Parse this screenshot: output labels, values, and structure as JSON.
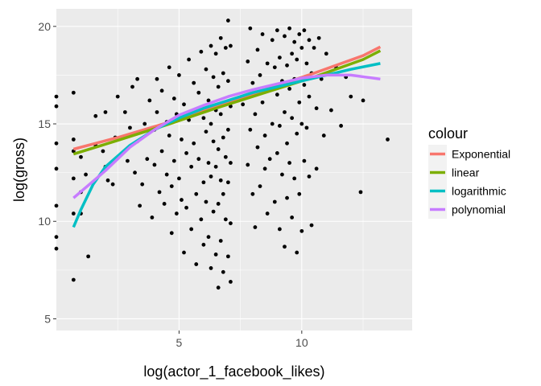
{
  "chart_data": {
    "type": "scatter",
    "xlabel": "log(actor_1_facebook_likes)",
    "ylabel": "log(gross)",
    "xlim": [
      0,
      14.5
    ],
    "ylim": [
      4.4,
      20.9
    ],
    "x_ticks": [
      5,
      10
    ],
    "x_tick_labels": [
      "5",
      "10"
    ],
    "y_ticks": [
      5,
      10,
      15,
      20
    ],
    "y_tick_labels": [
      "5",
      "10",
      "15",
      "20"
    ],
    "grid": true,
    "legend": {
      "title": "colour",
      "position": "right",
      "entries": [
        "Exponential",
        "linear",
        "logarithmic",
        "polynomial"
      ]
    },
    "colors": {
      "Exponential": "#F8766D",
      "linear": "#7CAE00",
      "logarithmic": "#00BFC4",
      "polynomial": "#C77CFF",
      "points": "#000000",
      "panel": "#EBEBEB"
    },
    "series": [
      {
        "name": "Exponential",
        "x": [
          0.7,
          2.5,
          4.5,
          6.5,
          8.5,
          10.5,
          12.5,
          13.2
        ],
        "y": [
          13.7,
          14.3,
          15.05,
          15.9,
          16.75,
          17.6,
          18.5,
          18.95
        ]
      },
      {
        "name": "linear",
        "x": [
          0.7,
          2.5,
          4.5,
          6.5,
          8.5,
          10.5,
          12.5,
          13.2
        ],
        "y": [
          13.45,
          14.15,
          14.95,
          15.8,
          16.6,
          17.4,
          18.3,
          18.75
        ]
      },
      {
        "name": "logarithmic",
        "x": [
          0.7,
          1.0,
          1.5,
          2.0,
          3.0,
          4.0,
          5.0,
          6.0,
          7.0,
          8.0,
          9.0,
          10.0,
          11.0,
          12.0,
          13.2
        ],
        "y": [
          9.7,
          10.6,
          11.9,
          12.8,
          13.9,
          14.7,
          15.3,
          15.8,
          16.2,
          16.6,
          16.9,
          17.2,
          17.5,
          17.8,
          18.1
        ]
      },
      {
        "name": "polynomial",
        "x": [
          0.7,
          2.0,
          3.0,
          4.0,
          5.0,
          6.0,
          7.0,
          8.0,
          9.0,
          10.0,
          11.0,
          12.0,
          13.2
        ],
        "y": [
          11.2,
          12.6,
          13.8,
          14.7,
          15.45,
          15.95,
          16.4,
          16.75,
          17.05,
          17.35,
          17.5,
          17.5,
          17.3
        ]
      }
    ],
    "points": [
      [
        0.0,
        16.4
      ],
      [
        0.0,
        15.9
      ],
      [
        0.0,
        14.0
      ],
      [
        0.0,
        12.7
      ],
      [
        0.0,
        10.8
      ],
      [
        0.0,
        9.2
      ],
      [
        0.0,
        8.6
      ],
      [
        0.7,
        16.6
      ],
      [
        0.7,
        14.2
      ],
      [
        0.7,
        13.6
      ],
      [
        0.7,
        12.2
      ],
      [
        0.7,
        10.4
      ],
      [
        0.7,
        7.0
      ],
      [
        1.0,
        13.3
      ],
      [
        1.0,
        11.5
      ],
      [
        1.0,
        10.4
      ],
      [
        1.2,
        12.4
      ],
      [
        1.3,
        8.2
      ],
      [
        1.6,
        15.4
      ],
      [
        1.6,
        13.9
      ],
      [
        1.9,
        13.6
      ],
      [
        2.0,
        15.6
      ],
      [
        2.0,
        12.8
      ],
      [
        2.1,
        12.1
      ],
      [
        2.3,
        11.9
      ],
      [
        2.4,
        14.3
      ],
      [
        2.5,
        16.4
      ],
      [
        2.8,
        15.6
      ],
      [
        2.9,
        13.1
      ],
      [
        3.0,
        14.8
      ],
      [
        3.1,
        16.9
      ],
      [
        3.2,
        12.5
      ],
      [
        3.3,
        17.3
      ],
      [
        3.3,
        14.1
      ],
      [
        3.4,
        10.8
      ],
      [
        3.5,
        11.9
      ],
      [
        3.6,
        15.0
      ],
      [
        3.7,
        13.2
      ],
      [
        3.8,
        16.2
      ],
      [
        3.9,
        10.2
      ],
      [
        4.0,
        14.7
      ],
      [
        4.0,
        12.9
      ],
      [
        4.1,
        17.3
      ],
      [
        4.1,
        15.6
      ],
      [
        4.2,
        11.5
      ],
      [
        4.3,
        16.7
      ],
      [
        4.3,
        13.6
      ],
      [
        4.4,
        10.9
      ],
      [
        4.5,
        15.1
      ],
      [
        4.5,
        12.4
      ],
      [
        4.6,
        17.9
      ],
      [
        4.6,
        14.4
      ],
      [
        4.7,
        11.8
      ],
      [
        4.7,
        9.4
      ],
      [
        4.8,
        16.3
      ],
      [
        4.8,
        13.1
      ],
      [
        4.9,
        15.5
      ],
      [
        4.9,
        10.4
      ],
      [
        5.0,
        12.2
      ],
      [
        5.0,
        17.5
      ],
      [
        5.1,
        14.2
      ],
      [
        5.1,
        11.1
      ],
      [
        5.2,
        16.0
      ],
      [
        5.2,
        8.4
      ],
      [
        5.3,
        13.5
      ],
      [
        5.3,
        10.7
      ],
      [
        5.4,
        18.3
      ],
      [
        5.4,
        15.2
      ],
      [
        5.5,
        12.8
      ],
      [
        5.5,
        9.6
      ],
      [
        5.6,
        17.1
      ],
      [
        5.6,
        14.0
      ],
      [
        5.7,
        11.4
      ],
      [
        5.7,
        7.8
      ],
      [
        5.8,
        16.6
      ],
      [
        5.8,
        13.2
      ],
      [
        5.9,
        10.1
      ],
      [
        5.9,
        18.7
      ],
      [
        6.0,
        15.3
      ],
      [
        6.0,
        12.0
      ],
      [
        6.0,
        8.8
      ],
      [
        6.1,
        17.8
      ],
      [
        6.1,
        14.6
      ],
      [
        6.1,
        11.0
      ],
      [
        6.2,
        16.2
      ],
      [
        6.2,
        13.0
      ],
      [
        6.2,
        9.2
      ],
      [
        6.3,
        19.0
      ],
      [
        6.3,
        15.0
      ],
      [
        6.3,
        12.3
      ],
      [
        6.3,
        7.6
      ],
      [
        6.4,
        17.4
      ],
      [
        6.4,
        14.1
      ],
      [
        6.4,
        10.5
      ],
      [
        6.5,
        18.6
      ],
      [
        6.5,
        15.7
      ],
      [
        6.5,
        12.8
      ],
      [
        6.5,
        8.3
      ],
      [
        6.6,
        16.9
      ],
      [
        6.6,
        13.7
      ],
      [
        6.6,
        10.9
      ],
      [
        6.6,
        6.6
      ],
      [
        6.7,
        19.4
      ],
      [
        6.7,
        15.5
      ],
      [
        6.7,
        12.1
      ],
      [
        6.7,
        9.0
      ],
      [
        6.8,
        17.6
      ],
      [
        6.8,
        14.3
      ],
      [
        6.8,
        11.4
      ],
      [
        6.8,
        7.4
      ],
      [
        6.9,
        18.9
      ],
      [
        6.9,
        16.1
      ],
      [
        6.9,
        13.3
      ],
      [
        6.9,
        10.1
      ],
      [
        7.0,
        20.3
      ],
      [
        7.0,
        17.2
      ],
      [
        7.0,
        14.7
      ],
      [
        7.0,
        12.0
      ],
      [
        7.0,
        8.2
      ],
      [
        7.1,
        19.0
      ],
      [
        7.1,
        15.9
      ],
      [
        7.1,
        13.0
      ],
      [
        7.1,
        9.9
      ],
      [
        7.1,
        6.9
      ],
      [
        7.6,
        16.0
      ],
      [
        7.8,
        18.2
      ],
      [
        7.8,
        12.9
      ],
      [
        7.9,
        19.9
      ],
      [
        7.9,
        14.7
      ],
      [
        8.0,
        11.4
      ],
      [
        8.0,
        17.1
      ],
      [
        8.1,
        15.5
      ],
      [
        8.1,
        9.7
      ],
      [
        8.2,
        18.8
      ],
      [
        8.2,
        13.8
      ],
      [
        8.3,
        17.5
      ],
      [
        8.3,
        11.8
      ],
      [
        8.4,
        19.6
      ],
      [
        8.4,
        16.1
      ],
      [
        8.5,
        14.4
      ],
      [
        8.5,
        12.7
      ],
      [
        8.6,
        18.1
      ],
      [
        8.6,
        10.4
      ],
      [
        8.7,
        16.9
      ],
      [
        8.7,
        13.2
      ],
      [
        8.8,
        19.3
      ],
      [
        8.8,
        15.0
      ],
      [
        8.9,
        17.9
      ],
      [
        8.9,
        11.0
      ],
      [
        9.0,
        19.8
      ],
      [
        9.0,
        16.5
      ],
      [
        9.0,
        13.5
      ],
      [
        9.1,
        18.4
      ],
      [
        9.1,
        14.9
      ],
      [
        9.1,
        9.6
      ],
      [
        9.2,
        17.2
      ],
      [
        9.2,
        12.4
      ],
      [
        9.3,
        19.5
      ],
      [
        9.3,
        15.6
      ],
      [
        9.3,
        8.7
      ],
      [
        9.4,
        18.0
      ],
      [
        9.4,
        14.0
      ],
      [
        9.4,
        11.2
      ],
      [
        9.5,
        19.9
      ],
      [
        9.5,
        16.8
      ],
      [
        9.5,
        13.0
      ],
      [
        9.6,
        18.6
      ],
      [
        9.6,
        15.3
      ],
      [
        9.6,
        10.2
      ],
      [
        9.7,
        19.2
      ],
      [
        9.7,
        17.3
      ],
      [
        9.7,
        12.2
      ],
      [
        9.8,
        18.3
      ],
      [
        9.8,
        14.5
      ],
      [
        9.8,
        8.4
      ],
      [
        9.9,
        19.6
      ],
      [
        9.9,
        16.1
      ],
      [
        9.9,
        11.4
      ],
      [
        10.0,
        18.9
      ],
      [
        10.0,
        15.0
      ],
      [
        10.0,
        9.5
      ],
      [
        10.1,
        19.8
      ],
      [
        10.1,
        17.0
      ],
      [
        10.1,
        13.1
      ],
      [
        10.2,
        18.1
      ],
      [
        10.2,
        14.8
      ],
      [
        10.3,
        19.3
      ],
      [
        10.3,
        16.4
      ],
      [
        10.3,
        12.3
      ],
      [
        10.4,
        17.6
      ],
      [
        10.4,
        9.8
      ],
      [
        10.5,
        18.9
      ],
      [
        10.6,
        15.8
      ],
      [
        10.6,
        12.7
      ],
      [
        10.7,
        19.4
      ],
      [
        10.8,
        17.3
      ],
      [
        10.9,
        14.4
      ],
      [
        11.0,
        18.6
      ],
      [
        11.2,
        15.7
      ],
      [
        11.4,
        17.9
      ],
      [
        11.6,
        14.9
      ],
      [
        11.8,
        17.4
      ],
      [
        12.0,
        16.4
      ],
      [
        12.4,
        11.5
      ],
      [
        12.5,
        16.2
      ],
      [
        13.5,
        14.2
      ]
    ]
  }
}
